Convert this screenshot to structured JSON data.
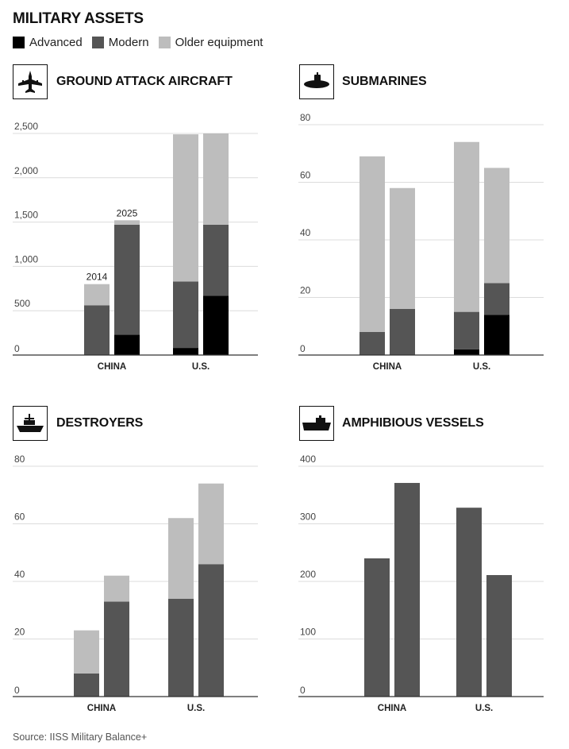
{
  "header": {
    "title": "MILITARY ASSETS",
    "legend": [
      {
        "label": "Advanced",
        "color": "#000000"
      },
      {
        "label": "Modern",
        "color": "#555555"
      },
      {
        "label": "Older equipment",
        "color": "#bdbdbd"
      }
    ]
  },
  "source": "Source: IISS Military Balance+",
  "colors": {
    "advanced": "#000000",
    "modern": "#555555",
    "older": "#bdbdbd"
  },
  "chart_data": [
    {
      "type": "bar",
      "stacked": true,
      "title": "GROUND ATTACK AIRCRAFT",
      "icon": "fighter-jet-icon",
      "categories": [
        "CHINA",
        "U.S."
      ],
      "yticks": [
        "0",
        "500",
        "1,000",
        "1,500",
        "2,000",
        "2,500"
      ],
      "ylim": [
        0,
        2500
      ],
      "grid": true,
      "bar_labels": [
        "2014",
        "2025"
      ],
      "groups": [
        {
          "category": "CHINA",
          "bars": [
            {
              "label": "2014",
              "advanced": 0,
              "modern": 560,
              "older": 240
            },
            {
              "label": "2025",
              "advanced": 230,
              "modern": 1240,
              "older": 50
            }
          ]
        },
        {
          "category": "U.S.",
          "bars": [
            {
              "label": "2014",
              "advanced": 80,
              "modern": 750,
              "older": 1660
            },
            {
              "label": "2025",
              "advanced": 670,
              "modern": 800,
              "older": 1030
            }
          ]
        }
      ]
    },
    {
      "type": "bar",
      "stacked": true,
      "title": "SUBMARINES",
      "icon": "submarine-icon",
      "categories": [
        "CHINA",
        "U.S."
      ],
      "yticks": [
        "0",
        "20",
        "40",
        "60",
        "80"
      ],
      "ylim": [
        0,
        80
      ],
      "grid": true,
      "groups": [
        {
          "category": "CHINA",
          "bars": [
            {
              "label": "2014",
              "advanced": 0,
              "modern": 8,
              "older": 61
            },
            {
              "label": "2025",
              "advanced": 0,
              "modern": 16,
              "older": 42
            }
          ]
        },
        {
          "category": "U.S.",
          "bars": [
            {
              "label": "2014",
              "advanced": 2,
              "modern": 13,
              "older": 59
            },
            {
              "label": "2025",
              "advanced": 14,
              "modern": 11,
              "older": 40
            }
          ]
        }
      ]
    },
    {
      "type": "bar",
      "stacked": true,
      "title": "DESTROYERS",
      "icon": "destroyer-ship-icon",
      "categories": [
        "CHINA",
        "U.S."
      ],
      "yticks": [
        "0",
        "20",
        "40",
        "60",
        "80"
      ],
      "ylim": [
        0,
        80
      ],
      "grid": true,
      "groups": [
        {
          "category": "CHINA",
          "bars": [
            {
              "label": "2014",
              "advanced": 0,
              "modern": 8,
              "older": 15
            },
            {
              "label": "2025",
              "advanced": 0,
              "modern": 33,
              "older": 9
            }
          ]
        },
        {
          "category": "U.S.",
          "bars": [
            {
              "label": "2014",
              "advanced": 0,
              "modern": 34,
              "older": 28
            },
            {
              "label": "2025",
              "advanced": 0,
              "modern": 46,
              "older": 28
            }
          ]
        }
      ]
    },
    {
      "type": "bar",
      "stacked": true,
      "title": "AMPHIBIOUS VESSELS",
      "icon": "amphibious-ship-icon",
      "categories": [
        "CHINA",
        "U.S."
      ],
      "yticks": [
        "0",
        "100",
        "200",
        "300",
        "400"
      ],
      "ylim": [
        0,
        400
      ],
      "grid": true,
      "groups": [
        {
          "category": "CHINA",
          "bars": [
            {
              "label": "2014",
              "advanced": 0,
              "modern": 240,
              "older": 0
            },
            {
              "label": "2025",
              "advanced": 0,
              "modern": 371,
              "older": 0
            }
          ]
        },
        {
          "category": "U.S.",
          "bars": [
            {
              "label": "2014",
              "advanced": 0,
              "modern": 328,
              "older": 0
            },
            {
              "label": "2025",
              "advanced": 0,
              "modern": 211,
              "older": 0
            }
          ]
        }
      ]
    }
  ]
}
